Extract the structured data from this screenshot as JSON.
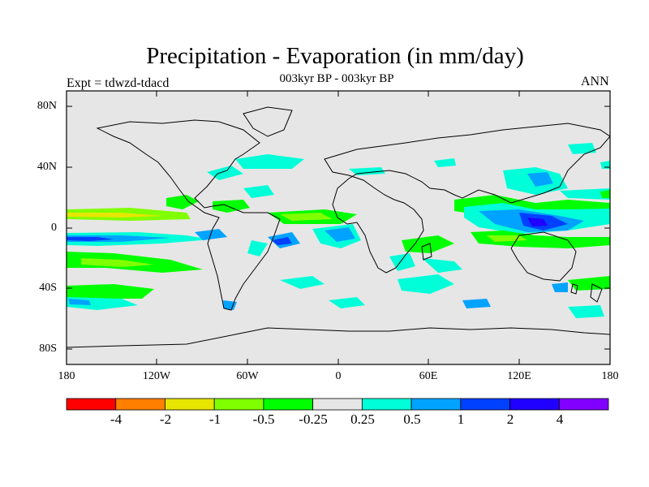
{
  "header": {
    "title": "Precipitation - Evaporation (in mm/day)",
    "subtitle": "003kyr BP - 003kyr BP",
    "experiment": "Expt = tdwzd-tdacd",
    "period": "ANN"
  },
  "map": {
    "background_color": "#e6e6e6",
    "lat_ticks": [
      "80N",
      "40N",
      "0",
      "40S",
      "80S"
    ],
    "lon_ticks": [
      "180",
      "120W",
      "60W",
      "0",
      "60E",
      "120E",
      "180"
    ]
  },
  "colorbar": {
    "colors": [
      "#ff0000",
      "#ff7f00",
      "#e6e600",
      "#80ff00",
      "#00ff00",
      "#e6e6e6",
      "#00ffd9",
      "#00a3ff",
      "#0040ff",
      "#2000ff",
      "#8000ff"
    ],
    "labels": [
      "-4",
      "-2",
      "-1",
      "-0.5",
      "-0.25",
      "0.25",
      "0.5",
      "1",
      "2",
      "4"
    ]
  }
}
